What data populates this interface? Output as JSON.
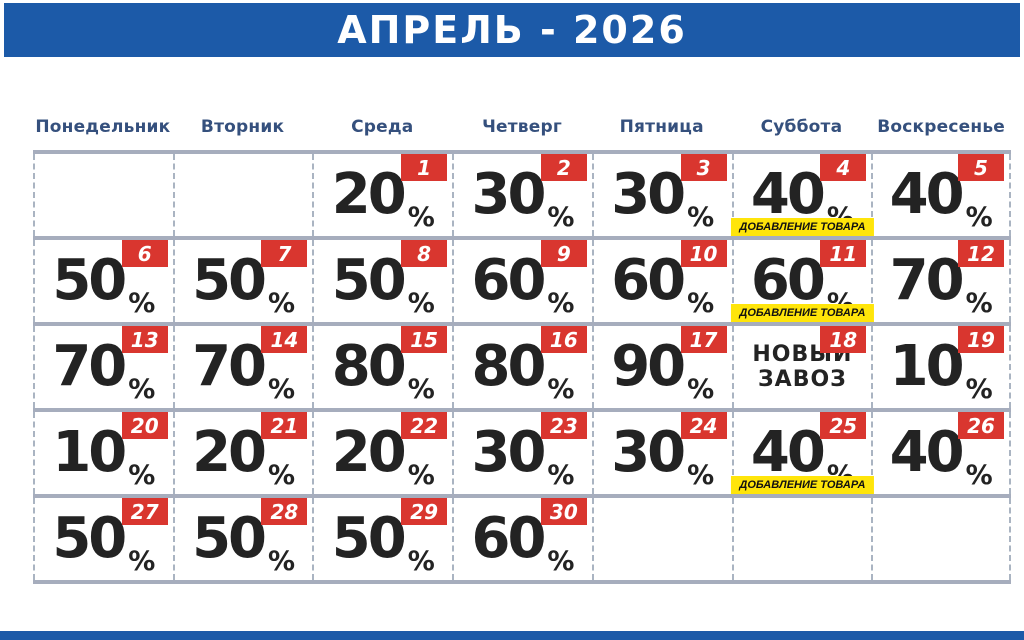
{
  "title": "АПРЕЛЬ - 2026",
  "weekdays": [
    "Понедельник",
    "Вторник",
    "Среда",
    "Четверг",
    "Пятница",
    "Суббота",
    "Воскресенье"
  ],
  "unit": "%",
  "colors": {
    "banner_blue": "#1c5aa8",
    "badge_red": "#d9362f",
    "label_yellow": "#ffe50a",
    "header_text_blue": "#35507d",
    "grid_line_gray": "#a6adbd",
    "percent_text": "#232323"
  },
  "weeks": [
    [
      null,
      null,
      {
        "day": 1,
        "percent": 20
      },
      {
        "day": 2,
        "percent": 30
      },
      {
        "day": 3,
        "percent": 30
      },
      {
        "day": 4,
        "percent": 40,
        "label": "ДОБАВЛЕНИЕ ТОВАРА"
      },
      {
        "day": 5,
        "percent": 40
      }
    ],
    [
      {
        "day": 6,
        "percent": 50
      },
      {
        "day": 7,
        "percent": 50
      },
      {
        "day": 8,
        "percent": 50
      },
      {
        "day": 9,
        "percent": 60
      },
      {
        "day": 10,
        "percent": 60
      },
      {
        "day": 11,
        "percent": 60,
        "label": "ДОБАВЛЕНИЕ ТОВАРА"
      },
      {
        "day": 12,
        "percent": 70
      }
    ],
    [
      {
        "day": 13,
        "percent": 70
      },
      {
        "day": 14,
        "percent": 70
      },
      {
        "day": 15,
        "percent": 80
      },
      {
        "day": 16,
        "percent": 80
      },
      {
        "day": 17,
        "percent": 90
      },
      {
        "day": 18,
        "note_lines": [
          "НОВЫЙ",
          "ЗАВОЗ"
        ]
      },
      {
        "day": 19,
        "percent": 10
      }
    ],
    [
      {
        "day": 20,
        "percent": 10
      },
      {
        "day": 21,
        "percent": 20
      },
      {
        "day": 22,
        "percent": 20
      },
      {
        "day": 23,
        "percent": 30
      },
      {
        "day": 24,
        "percent": 30
      },
      {
        "day": 25,
        "percent": 40,
        "label": "ДОБАВЛЕНИЕ ТОВАРА"
      },
      {
        "day": 26,
        "percent": 40
      }
    ],
    [
      {
        "day": 27,
        "percent": 50
      },
      {
        "day": 28,
        "percent": 50
      },
      {
        "day": 29,
        "percent": 50
      },
      {
        "day": 30,
        "percent": 60
      },
      null,
      null,
      null
    ]
  ]
}
